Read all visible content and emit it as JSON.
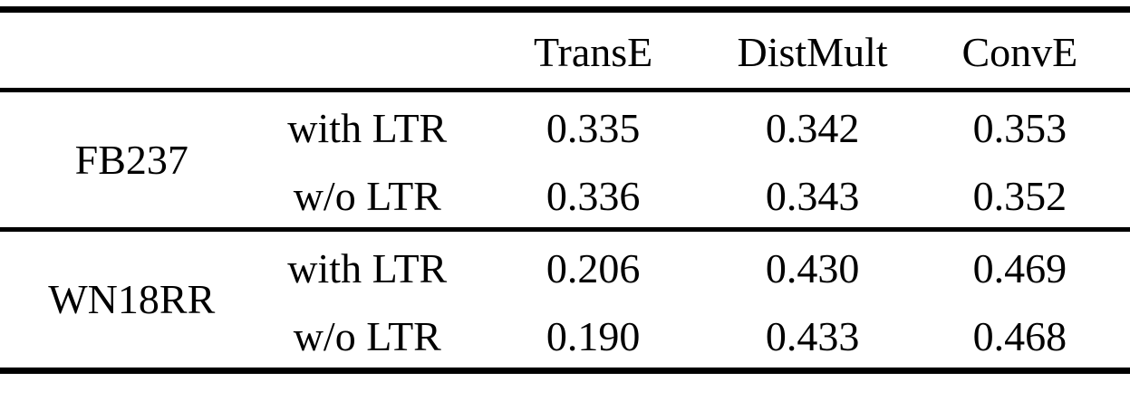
{
  "table": {
    "columns": [
      "TransE",
      "DistMult",
      "ConvE"
    ],
    "groups": [
      {
        "dataset": "FB237",
        "rows": [
          {
            "condition": "with LTR",
            "values": [
              "0.335",
              "0.342",
              "0.353"
            ]
          },
          {
            "condition": "w/o LTR",
            "values": [
              "0.336",
              "0.343",
              "0.352"
            ]
          }
        ]
      },
      {
        "dataset": "WN18RR",
        "rows": [
          {
            "condition": "with LTR",
            "values": [
              "0.206",
              "0.430",
              "0.469"
            ]
          },
          {
            "condition": "w/o LTR",
            "values": [
              "0.190",
              "0.433",
              "0.468"
            ]
          }
        ]
      }
    ]
  },
  "colors": {
    "text": "#000000",
    "rule": "#000000",
    "background": "#ffffff"
  },
  "chart_data": {
    "type": "table",
    "title": "",
    "column_headers": [
      "",
      "",
      "TransE",
      "DistMult",
      "ConvE"
    ],
    "rows": [
      [
        "FB237",
        "with LTR",
        0.335,
        0.342,
        0.353
      ],
      [
        "FB237",
        "w/o LTR",
        0.336,
        0.343,
        0.352
      ],
      [
        "WN18RR",
        "with LTR",
        0.206,
        0.43,
        0.469
      ],
      [
        "WN18RR",
        "w/o LTR",
        0.19,
        0.433,
        0.468
      ]
    ]
  }
}
